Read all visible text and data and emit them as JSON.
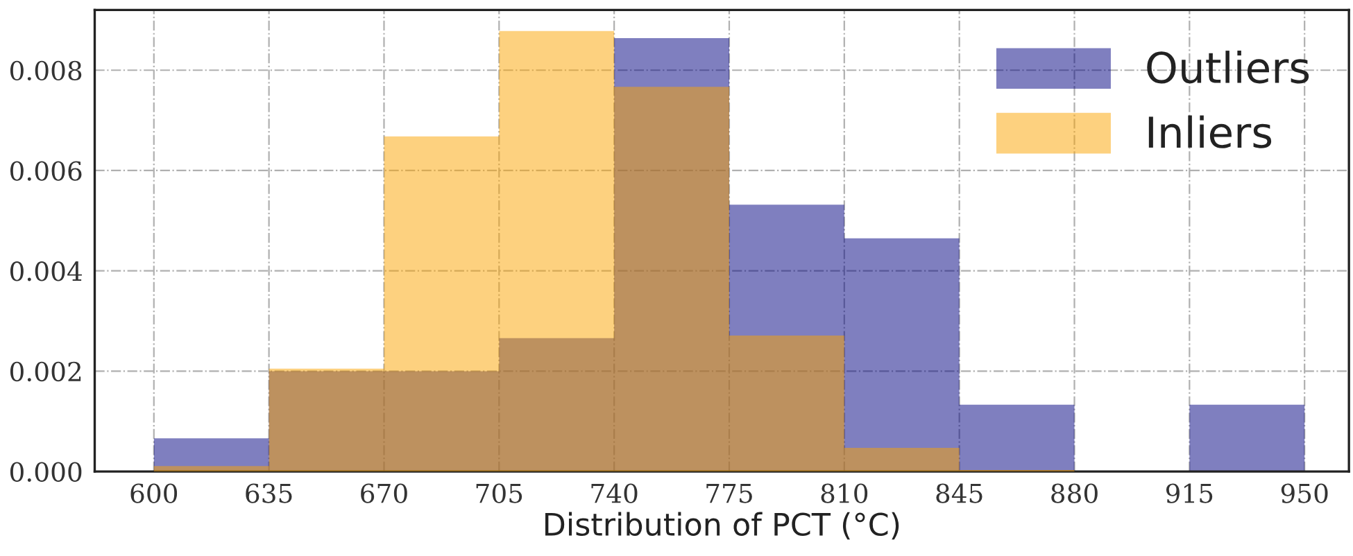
{
  "chart_data": {
    "type": "histogram",
    "xlabel": "Distribution of PCT (°C)",
    "bins": [
      600,
      635,
      670,
      705,
      740,
      775,
      810,
      845,
      880,
      915,
      950
    ],
    "series": [
      {
        "name": "Outliers",
        "color": "#7f7fbf",
        "values": [
          0.00066,
          0.002,
          0.002,
          0.00266,
          0.00864,
          0.00532,
          0.00465,
          0.00133,
          0,
          0.00133
        ]
      },
      {
        "name": "Inliers",
        "color": "#fdd17f",
        "values": [
          0.00011,
          0.00205,
          0.00668,
          0.00878,
          0.00767,
          0.00271,
          0.00047,
          3e-05,
          0,
          0
        ]
      }
    ],
    "xlim": [
      582,
      963.5
    ],
    "ylim": [
      0,
      0.0092
    ],
    "xticks": [
      600,
      635,
      670,
      705,
      740,
      775,
      810,
      845,
      880,
      915,
      950
    ],
    "yticks": [
      {
        "value": 0,
        "label": "0.000"
      },
      {
        "value": 0.002,
        "label": "0.002"
      },
      {
        "value": 0.004,
        "label": "0.004"
      },
      {
        "value": 0.006,
        "label": "0.006"
      },
      {
        "value": 0.008,
        "label": "0.008"
      }
    ],
    "grid": true,
    "legend": "top right"
  }
}
